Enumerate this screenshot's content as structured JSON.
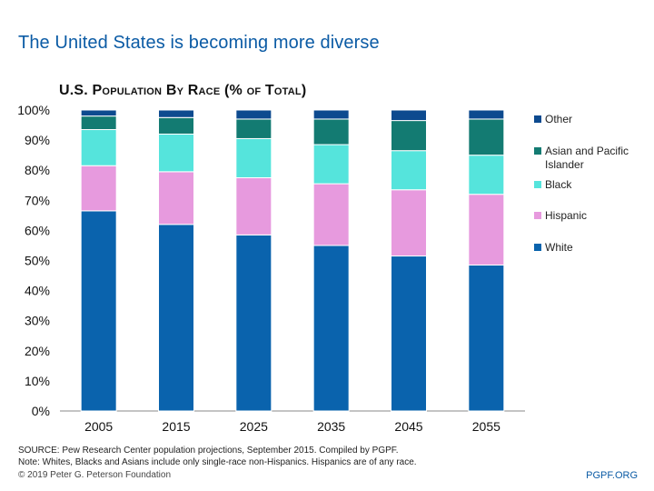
{
  "page": {
    "title": "The United States is becoming more diverse",
    "source_line": "SOURCE: Pew Research Center population projections, September 2015. Compiled by PGPF.",
    "note_line": "Note: Whites, Blacks and Asians include only single-race non-Hispanics. Hispanics are of any race.",
    "copyright": "© 2019 Peter G. Peterson Foundation",
    "brand": "PGPF.ORG"
  },
  "chart_data": {
    "type": "bar",
    "stacked": true,
    "title": "U.S. Population By Race (% of Total)",
    "categories": [
      "2005",
      "2015",
      "2025",
      "2035",
      "2045",
      "2055"
    ],
    "ylim": [
      0,
      100
    ],
    "yticks": [
      0,
      10,
      20,
      30,
      40,
      50,
      60,
      70,
      80,
      90,
      100
    ],
    "ytick_labels": [
      "0%",
      "10%",
      "20%",
      "30%",
      "40%",
      "50%",
      "60%",
      "70%",
      "80%",
      "90%",
      "100%"
    ],
    "xlabel": "",
    "ylabel": "",
    "grid": false,
    "legend_position": "right",
    "series": [
      {
        "name": "White",
        "color": "#0a63ad",
        "values": [
          66.5,
          62,
          58.5,
          55,
          51.5,
          48.5
        ]
      },
      {
        "name": "Hispanic",
        "color": "#e79ade",
        "values": [
          15,
          17.5,
          19,
          20.5,
          22,
          23.5
        ]
      },
      {
        "name": "Black",
        "color": "#55e4dc",
        "values": [
          12,
          12.5,
          13,
          13,
          13,
          13
        ]
      },
      {
        "name": "Asian and Pacific Islander",
        "color": "#137b72",
        "values": [
          4.5,
          5.5,
          6.5,
          8.5,
          10,
          12
        ]
      },
      {
        "name": "Other",
        "color": "#0d4a8f",
        "values": [
          2,
          2.5,
          3,
          3,
          3.5,
          3
        ]
      }
    ],
    "legend_order": [
      "Other",
      "Asian and Pacific Islander",
      "Black",
      "Hispanic",
      "White"
    ]
  }
}
